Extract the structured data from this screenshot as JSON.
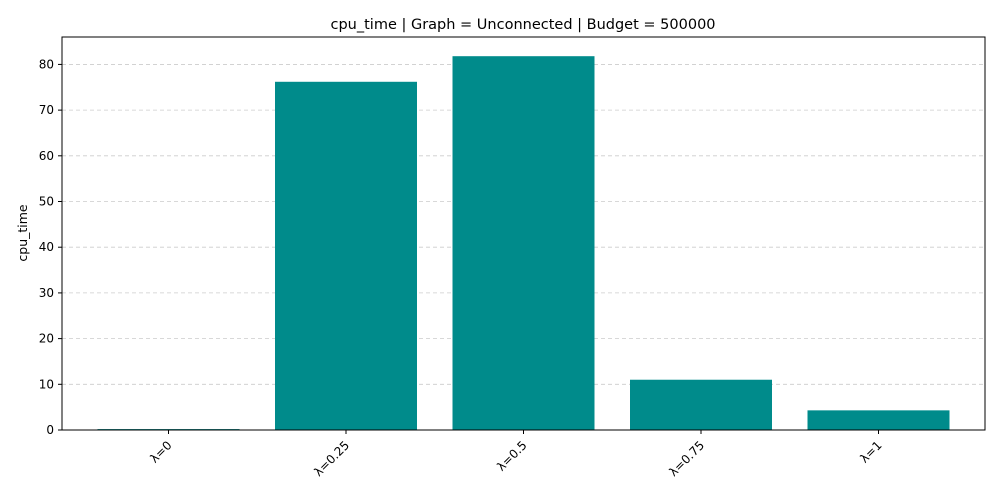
{
  "colors": {
    "bar": "#008b8b",
    "grid": "#cccccc",
    "axis": "#000000"
  },
  "chart_data": {
    "type": "bar",
    "title": "cpu_time | Graph = Unconnected | Budget = 500000",
    "xlabel": "",
    "ylabel": "cpu_time",
    "categories": [
      "λ=0",
      "λ=0.25",
      "λ=0.5",
      "λ=0.75",
      "λ=1"
    ],
    "values": [
      0.2,
      76.2,
      81.8,
      11.0,
      4.3
    ],
    "ylim": [
      0,
      86
    ],
    "yticks": [
      0,
      10,
      20,
      30,
      40,
      50,
      60,
      70,
      80
    ],
    "grid": "y, dashed",
    "x_tick_rotation": 45
  }
}
